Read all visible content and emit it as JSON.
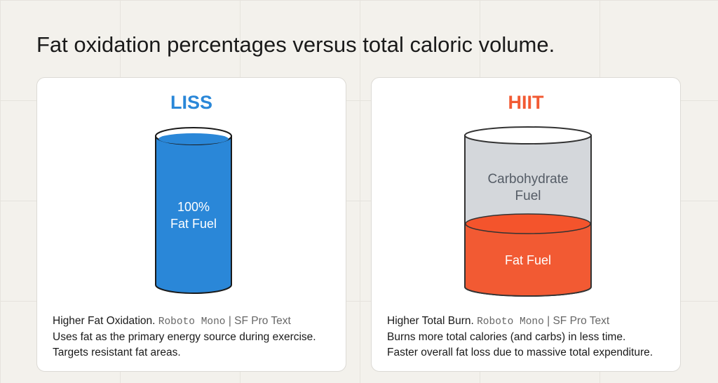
{
  "title": "Fat oxidation percentages versus total caloric volume.",
  "colors": {
    "liss": "#2a87d8",
    "hiit": "#f25a33",
    "carb": "#d4d7db"
  },
  "cards": [
    {
      "name": "LISS",
      "label_line1": "100%",
      "label_line2": "Fat Fuel",
      "fat_fraction": 1.0,
      "heading": "Higher Fat Oxidation.",
      "font_mono": "Roboto Mono",
      "font_sep": "| SF Pro Text",
      "body1": "Uses fat as the primary energy source during exercise.",
      "body2": "Targets resistant fat areas."
    },
    {
      "name": "HIIT",
      "carb_line1": "Carbohydrate",
      "carb_line2": "Fuel",
      "fat_label": "Fat Fuel",
      "fat_fraction": 0.45,
      "heading": "Higher Total Burn.",
      "font_mono": "Roboto Mono",
      "font_sep": "| SF Pro Text",
      "body1": "Burns more total calories (and carbs) in less time.",
      "body2": "Faster overall fat loss due to massive total expenditure."
    }
  ]
}
